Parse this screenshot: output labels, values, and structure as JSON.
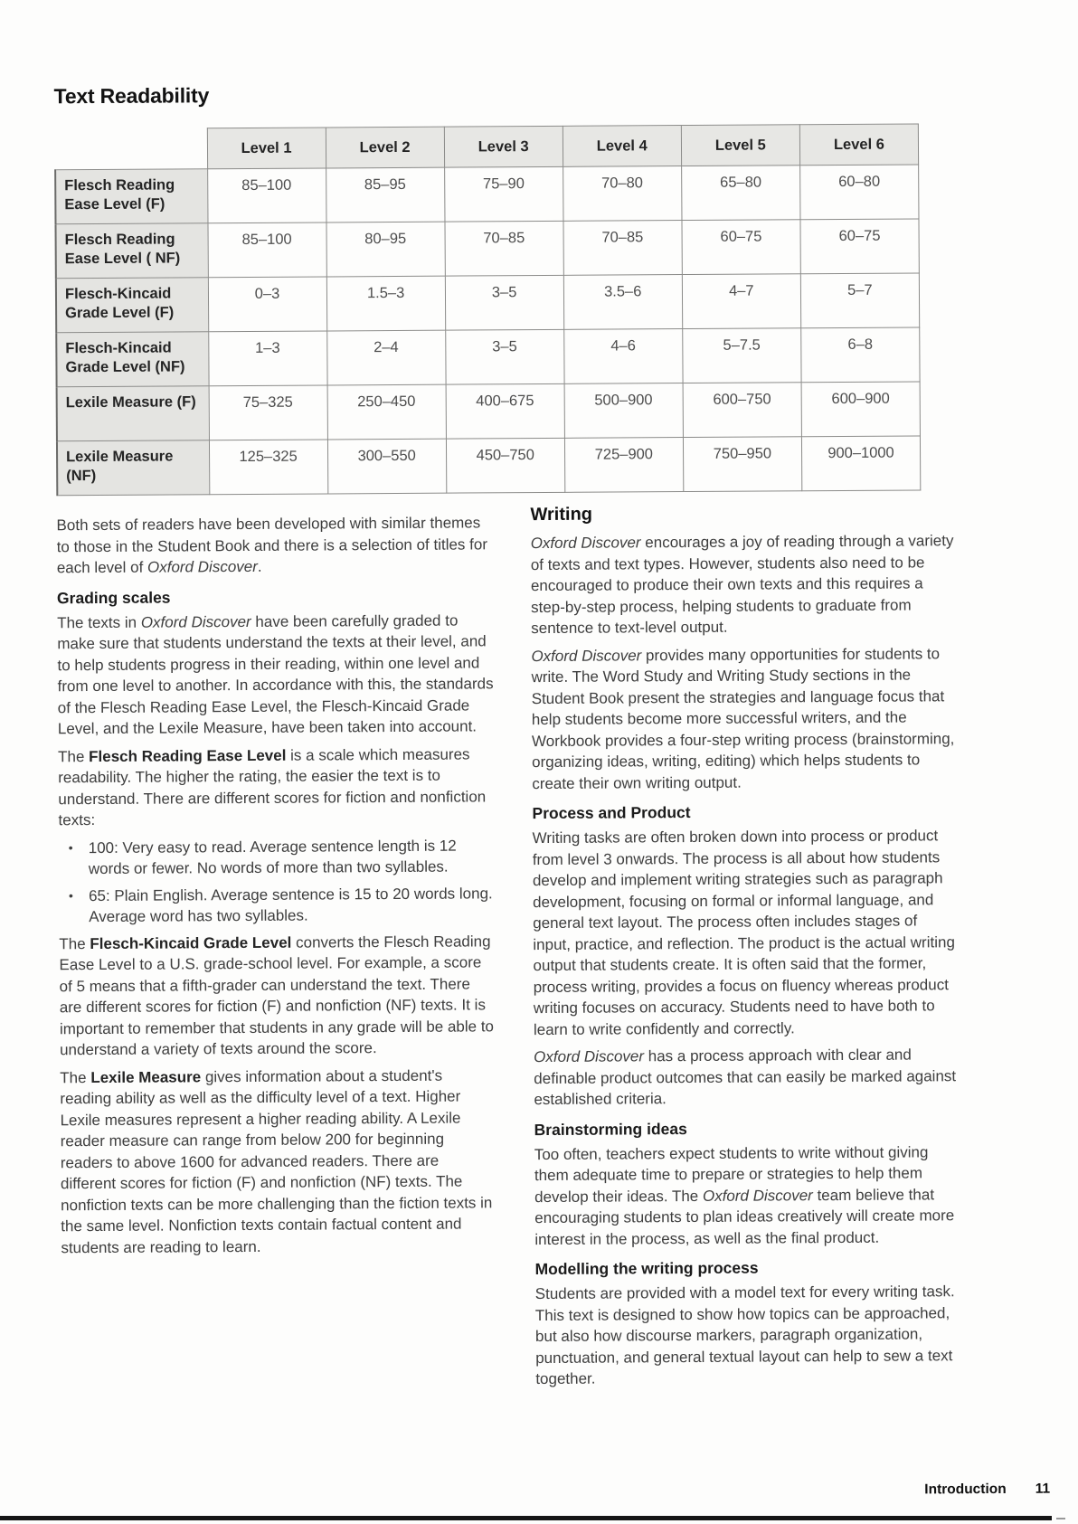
{
  "page": {
    "title": "Text Readability",
    "footer": {
      "section": "Introduction",
      "page_number": "11"
    }
  },
  "table": {
    "column_headers": [
      "Level 1",
      "Level 2",
      "Level 3",
      "Level 4",
      "Level 5",
      "Level 6"
    ],
    "rows": [
      {
        "label": "Flesch Reading Ease Level (F)",
        "values": [
          "85–100",
          "85–95",
          "75–90",
          "70–80",
          "65–80",
          "60–80"
        ]
      },
      {
        "label": "Flesch Reading Ease Level ( NF)",
        "values": [
          "85–100",
          "80–95",
          "70–85",
          "70–85",
          "60–75",
          "60–75"
        ]
      },
      {
        "label": "Flesch-Kincaid Grade Level (F)",
        "values": [
          "0–3",
          "1.5–3",
          "3–5",
          "3.5–6",
          "4–7",
          "5–7"
        ]
      },
      {
        "label": "Flesch-Kincaid Grade Level (NF)",
        "values": [
          "1–3",
          "2–4",
          "3–5",
          "4–6",
          "5–7.5",
          "6–8"
        ]
      },
      {
        "label": "Lexile Measure (F)",
        "values": [
          "75–325",
          "250–450",
          "400–675",
          "500–900",
          "600–750",
          "600–900"
        ]
      },
      {
        "label": "Lexile Measure (NF)",
        "values": [
          "125–325",
          "300–550",
          "450–750",
          "725–900",
          "750–950",
          "900–1000"
        ]
      }
    ]
  },
  "left_column": {
    "blocks": [
      {
        "type": "paragraph",
        "segments": [
          {
            "text": "Both sets of readers have been developed with similar themes to those in the Student Book and there is a selection of titles for each level of ",
            "style": "normal"
          },
          {
            "text": "Oxford Discover",
            "style": "italic"
          },
          {
            "text": ".",
            "style": "normal"
          }
        ]
      },
      {
        "type": "heading",
        "text": "Grading scales"
      },
      {
        "type": "paragraph",
        "segments": [
          {
            "text": "The texts in ",
            "style": "normal"
          },
          {
            "text": "Oxford Discover",
            "style": "italic"
          },
          {
            "text": " have been carefully graded to make sure that students understand the texts at their level, and to help students progress in their reading, within one level and from one level to another. In accordance with this, the standards of the Flesch Reading Ease Level, the Flesch-Kincaid Grade Level, and the Lexile Measure, have been taken into account.",
            "style": "normal"
          }
        ]
      },
      {
        "type": "paragraph",
        "segments": [
          {
            "text": "The ",
            "style": "normal"
          },
          {
            "text": "Flesch Reading Ease Level",
            "style": "bold"
          },
          {
            "text": " is a scale which measures readability. The higher the rating, the easier the text is to understand. There are different scores for fiction and nonfiction texts:",
            "style": "normal"
          }
        ]
      },
      {
        "type": "bullet",
        "segments": [
          {
            "text": "100: Very easy to read. Average sentence length is 12 words or fewer. No words of more than two syllables.",
            "style": "normal"
          }
        ]
      },
      {
        "type": "bullet",
        "segments": [
          {
            "text": "65: Plain English. Average sentence is 15 to 20 words long. Average word has two syllables.",
            "style": "normal"
          }
        ]
      },
      {
        "type": "paragraph",
        "segments": [
          {
            "text": "The ",
            "style": "normal"
          },
          {
            "text": "Flesch-Kincaid Grade Level",
            "style": "bold"
          },
          {
            "text": " converts the Flesch Reading Ease Level to a U.S. grade-school level. For example, a score of 5 means that a fifth-grader can understand the text. There are different scores for fiction (F) and nonfiction (NF) texts. It is important to remember that students in any grade will be able to understand a variety of texts around the score.",
            "style": "normal"
          }
        ]
      },
      {
        "type": "paragraph",
        "segments": [
          {
            "text": "The ",
            "style": "normal"
          },
          {
            "text": "Lexile Measure",
            "style": "bold"
          },
          {
            "text": " gives information about a student's reading ability as well as the difficulty level of a text. Higher Lexile measures represent a higher reading ability. A Lexile reader measure can range from below 200 for beginning readers to above 1600 for advanced readers. There are different scores for fiction (F) and nonfiction (NF) texts. The nonfiction texts can be more challenging than the fiction texts in the same level. Nonfiction texts contain factual content and students are reading to learn.",
            "style": "normal"
          }
        ]
      }
    ]
  },
  "right_column": {
    "blocks": [
      {
        "type": "section_title",
        "text": "Writing"
      },
      {
        "type": "paragraph",
        "segments": [
          {
            "text": "Oxford Discover",
            "style": "italic"
          },
          {
            "text": " encourages a joy of reading through a variety of texts and text types. However, students also need to be encouraged to produce their own texts and this requires a step-by-step process, helping students to graduate from sentence to text-level output.",
            "style": "normal"
          }
        ]
      },
      {
        "type": "paragraph",
        "segments": [
          {
            "text": "Oxford Discover",
            "style": "italic"
          },
          {
            "text": " provides many opportunities for students to write. The Word Study and Writing Study sections in the Student Book present the strategies and language focus that help students become more successful writers, and the Workbook provides a four-step writing process (brainstorming, organizing ideas, writing, editing) which helps students to create their own writing output.",
            "style": "normal"
          }
        ]
      },
      {
        "type": "heading",
        "text": "Process and Product"
      },
      {
        "type": "paragraph",
        "segments": [
          {
            "text": "Writing tasks are often broken down into process or product from level 3 onwards. The process is all about how students develop and implement writing strategies such as paragraph development, focusing on formal or informal language, and general text layout. The process often includes stages of input, practice, and reflection. The product is the actual writing output that students create. It is often said that the former, process writing, provides a focus on fluency whereas product writing focuses on accuracy. Students need to have both to learn to write confidently and correctly.",
            "style": "normal"
          }
        ]
      },
      {
        "type": "paragraph",
        "segments": [
          {
            "text": "Oxford Discover",
            "style": "italic"
          },
          {
            "text": " has a process approach with clear and definable product outcomes that can easily be marked against established criteria.",
            "style": "normal"
          }
        ]
      },
      {
        "type": "heading",
        "text": "Brainstorming ideas"
      },
      {
        "type": "paragraph",
        "segments": [
          {
            "text": "Too often, teachers expect students to write without giving them adequate time to prepare or strategies to help them develop their ideas. The ",
            "style": "normal"
          },
          {
            "text": "Oxford Discover",
            "style": "italic"
          },
          {
            "text": " team believe that encouraging students to plan ideas creatively will create more interest in the process, as well as the final product.",
            "style": "normal"
          }
        ]
      },
      {
        "type": "heading",
        "text": "Modelling the writing process"
      },
      {
        "type": "paragraph",
        "segments": [
          {
            "text": "Students are provided with a model text for every writing task. This text is designed to show how topics can be approached, but also how discourse markers, paragraph organization, punctuation, and general textual layout can help to sew a text together.",
            "style": "normal"
          }
        ]
      }
    ]
  },
  "colors": {
    "table_fill": "#e6e6e3",
    "table_border": "#8b8b89",
    "body_text": "#3e3e3e",
    "heading_text": "#121212",
    "scan_edge_bar": "#161616"
  },
  "bullet_marker": "•"
}
